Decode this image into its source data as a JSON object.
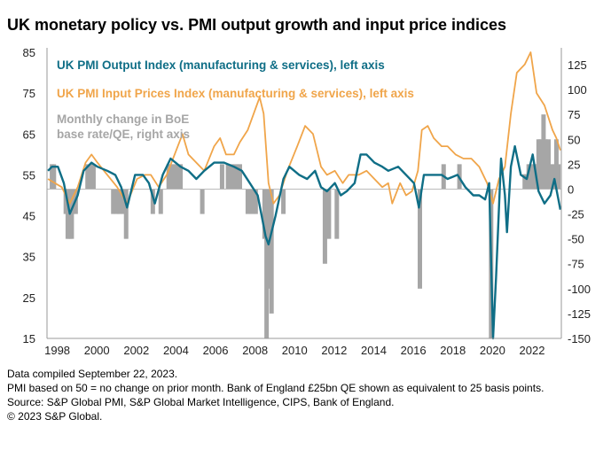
{
  "title": "UK monetary policy vs. PMI output growth and input price indices",
  "notes": [
    "Data compiled September 22, 2023.",
    "PMI based on 50 = no change on prior month. Bank of England £25bn QE shown as equivalent to 25 basis points.",
    "Source: S&P Global PMI, S&P Global Market Intelligence, CIPS, Bank of England.",
    "© 2023 S&P Global."
  ],
  "chart_data": {
    "type": "line",
    "title": "UK monetary policy vs. PMI output growth and input price indices",
    "x_ticks": [
      "1998",
      "2000",
      "2002",
      "2004",
      "2006",
      "2008",
      "2010",
      "2012",
      "2014",
      "2016",
      "2018",
      "2020",
      "2022"
    ],
    "xlim": [
      1997.75,
      2023.75
    ],
    "left_axis": {
      "ylim": [
        15,
        85
      ],
      "ticks": [
        85,
        75,
        65,
        55,
        45,
        35,
        25,
        15
      ]
    },
    "right_axis": {
      "ylim": [
        -150,
        140
      ],
      "ticks": [
        125,
        100,
        75,
        50,
        25,
        0,
        -25,
        -50,
        -75,
        -100,
        -125,
        -150
      ]
    },
    "grid": false,
    "legend_placement": "top-left",
    "colors": {
      "output": "#0f6e86",
      "input": "#f0a54a",
      "bars": "#a6a6a6"
    },
    "series": [
      {
        "name": "UK PMI Output Index (manufacturing & services), left axis",
        "axis": "left",
        "kind": "line",
        "points": [
          [
            1997.8,
            56
          ],
          [
            1998.0,
            57
          ],
          [
            1998.3,
            57
          ],
          [
            1998.6,
            53
          ],
          [
            1998.9,
            45.5
          ],
          [
            1999.3,
            50
          ],
          [
            1999.6,
            56
          ],
          [
            2000.0,
            58
          ],
          [
            2000.3,
            57
          ],
          [
            2000.8,
            56
          ],
          [
            2001.2,
            55
          ],
          [
            2001.5,
            52
          ],
          [
            2001.8,
            47
          ],
          [
            2002.2,
            55
          ],
          [
            2002.6,
            55
          ],
          [
            2002.9,
            53
          ],
          [
            2003.2,
            48
          ],
          [
            2003.6,
            55
          ],
          [
            2004.0,
            59
          ],
          [
            2004.5,
            57
          ],
          [
            2004.9,
            56
          ],
          [
            2005.3,
            54
          ],
          [
            2005.7,
            56
          ],
          [
            2006.2,
            58
          ],
          [
            2006.7,
            58
          ],
          [
            2007.2,
            57
          ],
          [
            2007.6,
            56
          ],
          [
            2008.0,
            53
          ],
          [
            2008.4,
            50
          ],
          [
            2008.8,
            40
          ],
          [
            2008.95,
            38
          ],
          [
            2009.3,
            45
          ],
          [
            2009.7,
            54
          ],
          [
            2010.0,
            57
          ],
          [
            2010.5,
            55
          ],
          [
            2010.9,
            54
          ],
          [
            2011.3,
            56
          ],
          [
            2011.6,
            52
          ],
          [
            2011.9,
            51
          ],
          [
            2012.3,
            53
          ],
          [
            2012.6,
            50
          ],
          [
            2012.9,
            51
          ],
          [
            2013.3,
            53
          ],
          [
            2013.6,
            60
          ],
          [
            2013.9,
            60
          ],
          [
            2014.3,
            58
          ],
          [
            2014.7,
            57
          ],
          [
            2015.0,
            56
          ],
          [
            2015.5,
            57
          ],
          [
            2015.9,
            55
          ],
          [
            2016.3,
            53
          ],
          [
            2016.55,
            47
          ],
          [
            2016.8,
            55
          ],
          [
            2017.3,
            55
          ],
          [
            2017.7,
            55
          ],
          [
            2018.0,
            54
          ],
          [
            2018.5,
            55
          ],
          [
            2018.9,
            52
          ],
          [
            2019.3,
            50
          ],
          [
            2019.6,
            50
          ],
          [
            2019.9,
            49
          ],
          [
            2020.1,
            53
          ],
          [
            2020.3,
            15
          ],
          [
            2020.45,
            30
          ],
          [
            2020.7,
            59
          ],
          [
            2020.9,
            50
          ],
          [
            2021.0,
            41
          ],
          [
            2021.2,
            57
          ],
          [
            2021.4,
            62
          ],
          [
            2021.7,
            55
          ],
          [
            2022.0,
            54
          ],
          [
            2022.3,
            60
          ],
          [
            2022.6,
            51
          ],
          [
            2022.9,
            48
          ],
          [
            2023.2,
            50
          ],
          [
            2023.4,
            54
          ],
          [
            2023.7,
            46.5
          ]
        ]
      },
      {
        "name": "UK PMI Input Prices Index (manufacturing & services), left axis",
        "axis": "left",
        "kind": "line",
        "points": [
          [
            1997.8,
            54
          ],
          [
            1998.5,
            52
          ],
          [
            1998.9,
            48
          ],
          [
            1999.3,
            52
          ],
          [
            1999.7,
            58
          ],
          [
            2000.0,
            60
          ],
          [
            2000.3,
            58
          ],
          [
            2000.8,
            55
          ],
          [
            2001.3,
            52
          ],
          [
            2001.8,
            48
          ],
          [
            2002.3,
            54
          ],
          [
            2002.7,
            55
          ],
          [
            2003.0,
            55
          ],
          [
            2003.4,
            52
          ],
          [
            2003.8,
            55
          ],
          [
            2004.2,
            60
          ],
          [
            2004.6,
            65
          ],
          [
            2004.9,
            60
          ],
          [
            2005.3,
            58
          ],
          [
            2005.7,
            56
          ],
          [
            2006.2,
            62
          ],
          [
            2006.5,
            64
          ],
          [
            2006.8,
            60
          ],
          [
            2007.2,
            60
          ],
          [
            2007.5,
            63
          ],
          [
            2007.9,
            66
          ],
          [
            2008.5,
            74
          ],
          [
            2008.7,
            70
          ],
          [
            2008.95,
            53
          ],
          [
            2009.2,
            48
          ],
          [
            2009.5,
            50
          ],
          [
            2009.9,
            56
          ],
          [
            2010.4,
            62
          ],
          [
            2010.8,
            67
          ],
          [
            2011.2,
            65
          ],
          [
            2011.6,
            57
          ],
          [
            2011.9,
            55
          ],
          [
            2012.3,
            56
          ],
          [
            2012.7,
            53
          ],
          [
            2013.0,
            55
          ],
          [
            2013.5,
            55
          ],
          [
            2013.9,
            56
          ],
          [
            2014.3,
            54
          ],
          [
            2014.7,
            52
          ],
          [
            2015.0,
            53
          ],
          [
            2015.2,
            48
          ],
          [
            2015.6,
            53
          ],
          [
            2015.9,
            50
          ],
          [
            2016.2,
            51
          ],
          [
            2016.5,
            56
          ],
          [
            2016.7,
            66
          ],
          [
            2017.0,
            67
          ],
          [
            2017.3,
            64
          ],
          [
            2017.7,
            62
          ],
          [
            2018.0,
            62
          ],
          [
            2018.4,
            60
          ],
          [
            2018.8,
            59
          ],
          [
            2019.2,
            59
          ],
          [
            2019.6,
            57
          ],
          [
            2020.0,
            53
          ],
          [
            2020.3,
            48
          ],
          [
            2020.6,
            54
          ],
          [
            2020.9,
            57
          ],
          [
            2021.2,
            70
          ],
          [
            2021.5,
            80
          ],
          [
            2021.9,
            82
          ],
          [
            2022.2,
            85
          ],
          [
            2022.5,
            75
          ],
          [
            2022.9,
            72
          ],
          [
            2023.3,
            66
          ],
          [
            2023.5,
            64
          ],
          [
            2023.7,
            61
          ]
        ]
      },
      {
        "name": "Monthly change in BoE base rate/QE, right axis",
        "axis": "right",
        "kind": "bar",
        "points": [
          [
            1998.0,
            25
          ],
          [
            1998.1,
            25
          ],
          [
            1998.7,
            -25
          ],
          [
            1998.8,
            -50
          ],
          [
            1998.9,
            -50
          ],
          [
            1999.0,
            -50
          ],
          [
            1999.1,
            -25
          ],
          [
            1999.2,
            -25
          ],
          [
            1999.8,
            25
          ],
          [
            2000.0,
            25
          ],
          [
            2000.1,
            25
          ],
          [
            2001.1,
            -25
          ],
          [
            2001.3,
            -25
          ],
          [
            2001.4,
            -25
          ],
          [
            2001.6,
            -25
          ],
          [
            2001.75,
            -50
          ],
          [
            2003.1,
            -25
          ],
          [
            2003.5,
            -25
          ],
          [
            2003.9,
            25
          ],
          [
            2004.1,
            25
          ],
          [
            2004.3,
            25
          ],
          [
            2004.5,
            25
          ],
          [
            2005.6,
            -25
          ],
          [
            2006.6,
            25
          ],
          [
            2006.9,
            25
          ],
          [
            2007.1,
            25
          ],
          [
            2007.3,
            25
          ],
          [
            2007.5,
            25
          ],
          [
            2007.9,
            -25
          ],
          [
            2008.1,
            -25
          ],
          [
            2008.3,
            -25
          ],
          [
            2008.75,
            -50
          ],
          [
            2008.85,
            -150
          ],
          [
            2008.95,
            -100
          ],
          [
            2009.1,
            -125
          ],
          [
            2009.7,
            -25
          ],
          [
            2011.8,
            -75
          ],
          [
            2012.0,
            -50
          ],
          [
            2012.4,
            -50
          ],
          [
            2016.6,
            -100
          ],
          [
            2017.8,
            25
          ],
          [
            2018.6,
            25
          ],
          [
            2020.2,
            -150
          ],
          [
            2021.9,
            15
          ],
          [
            2022.1,
            25
          ],
          [
            2022.2,
            25
          ],
          [
            2022.4,
            25
          ],
          [
            2022.5,
            25
          ],
          [
            2022.6,
            50
          ],
          [
            2022.7,
            50
          ],
          [
            2022.85,
            75
          ],
          [
            2022.95,
            50
          ],
          [
            2023.1,
            50
          ],
          [
            2023.2,
            25
          ],
          [
            2023.4,
            25
          ],
          [
            2023.5,
            50
          ],
          [
            2023.6,
            25
          ]
        ]
      }
    ],
    "legend": [
      "UK PMI Output Index (manufacturing & services), left axis",
      "UK PMI Input Prices Index (manufacturing & services), left axis",
      "Monthly change in BoE",
      "base rate/QE, right axis"
    ]
  }
}
